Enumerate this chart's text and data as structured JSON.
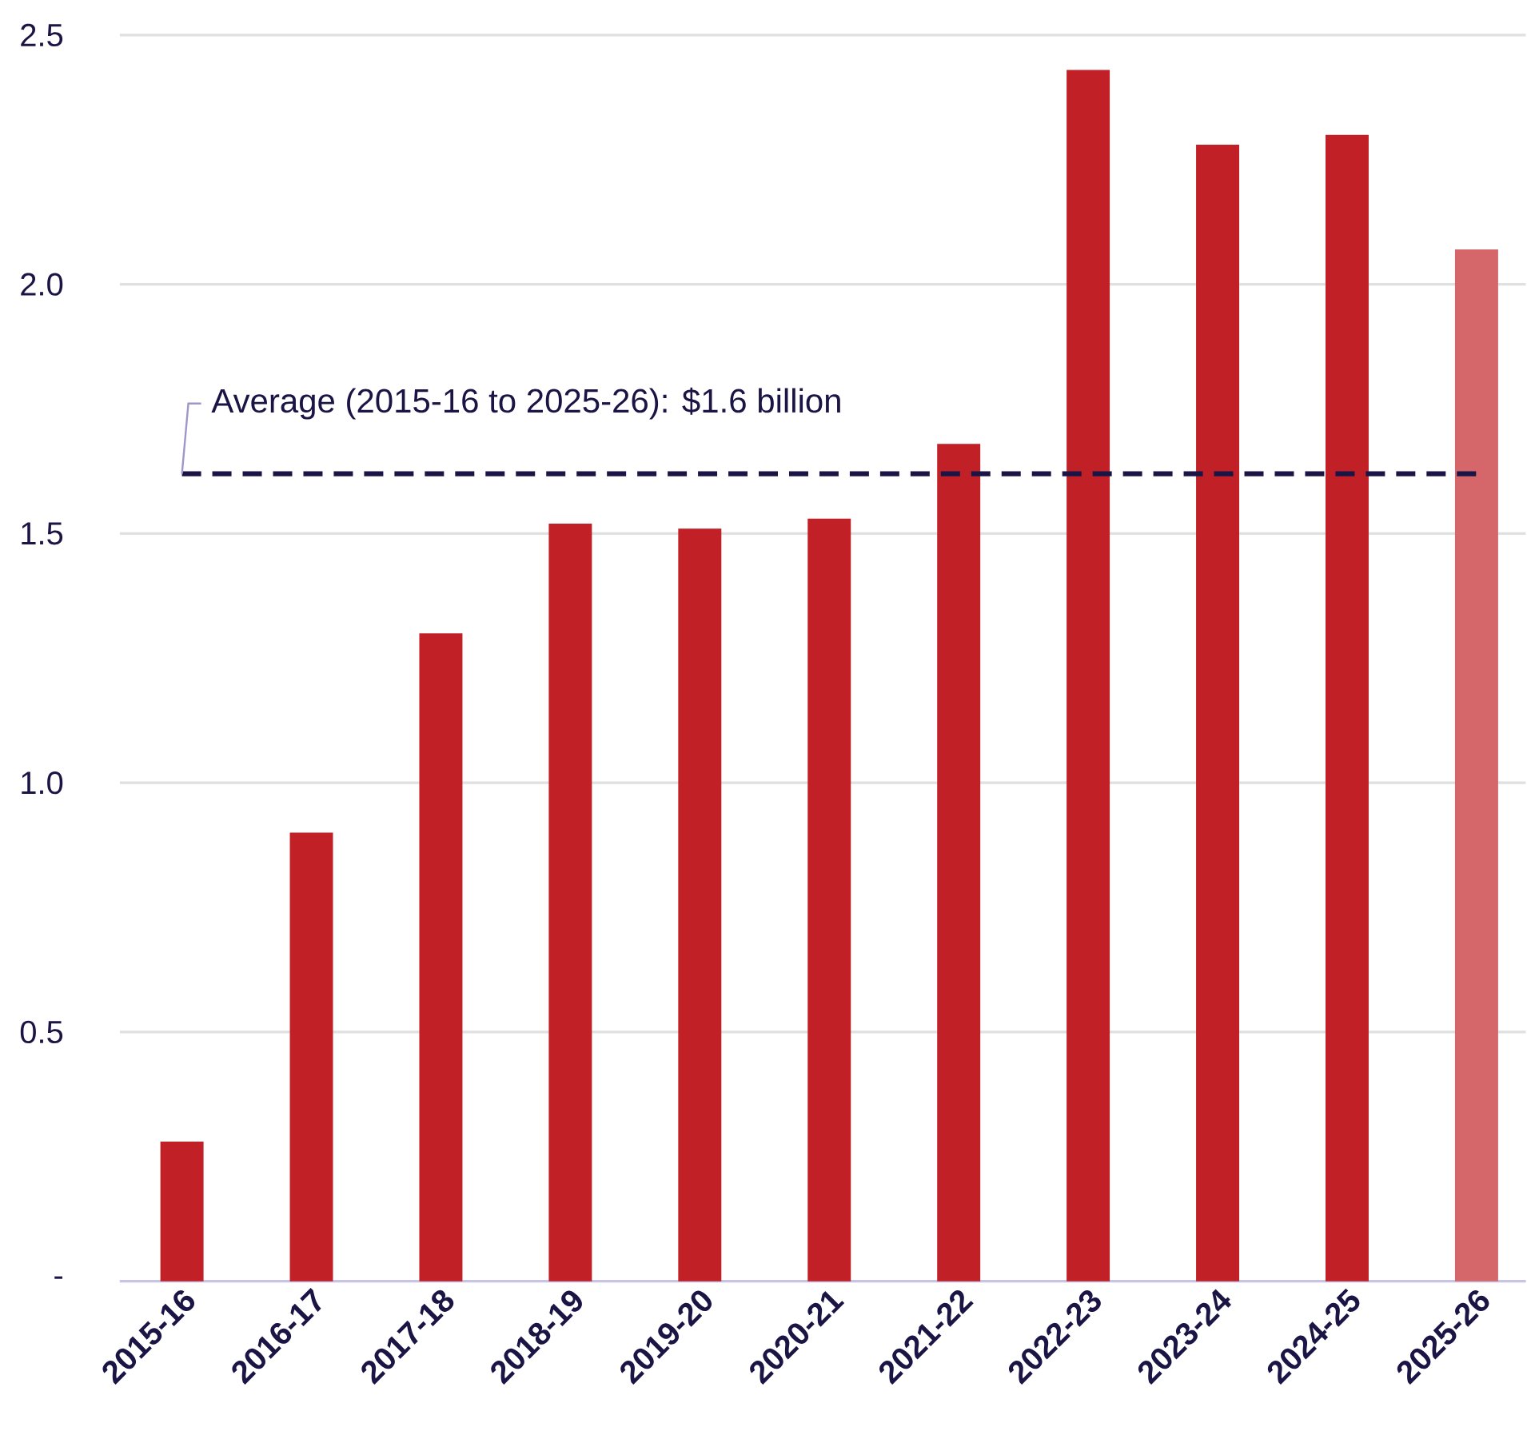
{
  "chart_data": {
    "type": "bar",
    "categories": [
      "2015-16",
      "2016-17",
      "2017-18",
      "2018-19",
      "2019-20",
      "2020-21",
      "2021-22",
      "2022-23",
      "2023-24",
      "2024-25",
      "2025-26"
    ],
    "values": [
      0.28,
      0.9,
      1.3,
      1.52,
      1.51,
      1.53,
      1.68,
      2.43,
      2.28,
      2.3,
      2.07
    ],
    "colors": [
      "#c02026",
      "#c02026",
      "#c02026",
      "#c02026",
      "#c02026",
      "#c02026",
      "#c02026",
      "#c02026",
      "#c02026",
      "#c02026",
      "#d5666a"
    ],
    "ylim": [
      0,
      2.5
    ],
    "yticks": [
      {
        "value": 0,
        "label": "-"
      },
      {
        "value": 0.5,
        "label": "0.5"
      },
      {
        "value": 1,
        "label": "1.0"
      },
      {
        "value": 1.5,
        "label": "1.5"
      },
      {
        "value": 2,
        "label": "2.0"
      },
      {
        "value": 2.5,
        "label": "2.5"
      }
    ],
    "grid": "y",
    "ref_lines": [
      {
        "axis": "y",
        "value": 1.62,
        "label": "Average (2015-16 to 2025-26): $1.6 billion",
        "color": "#1b1546",
        "line_style": "dashed"
      }
    ]
  }
}
